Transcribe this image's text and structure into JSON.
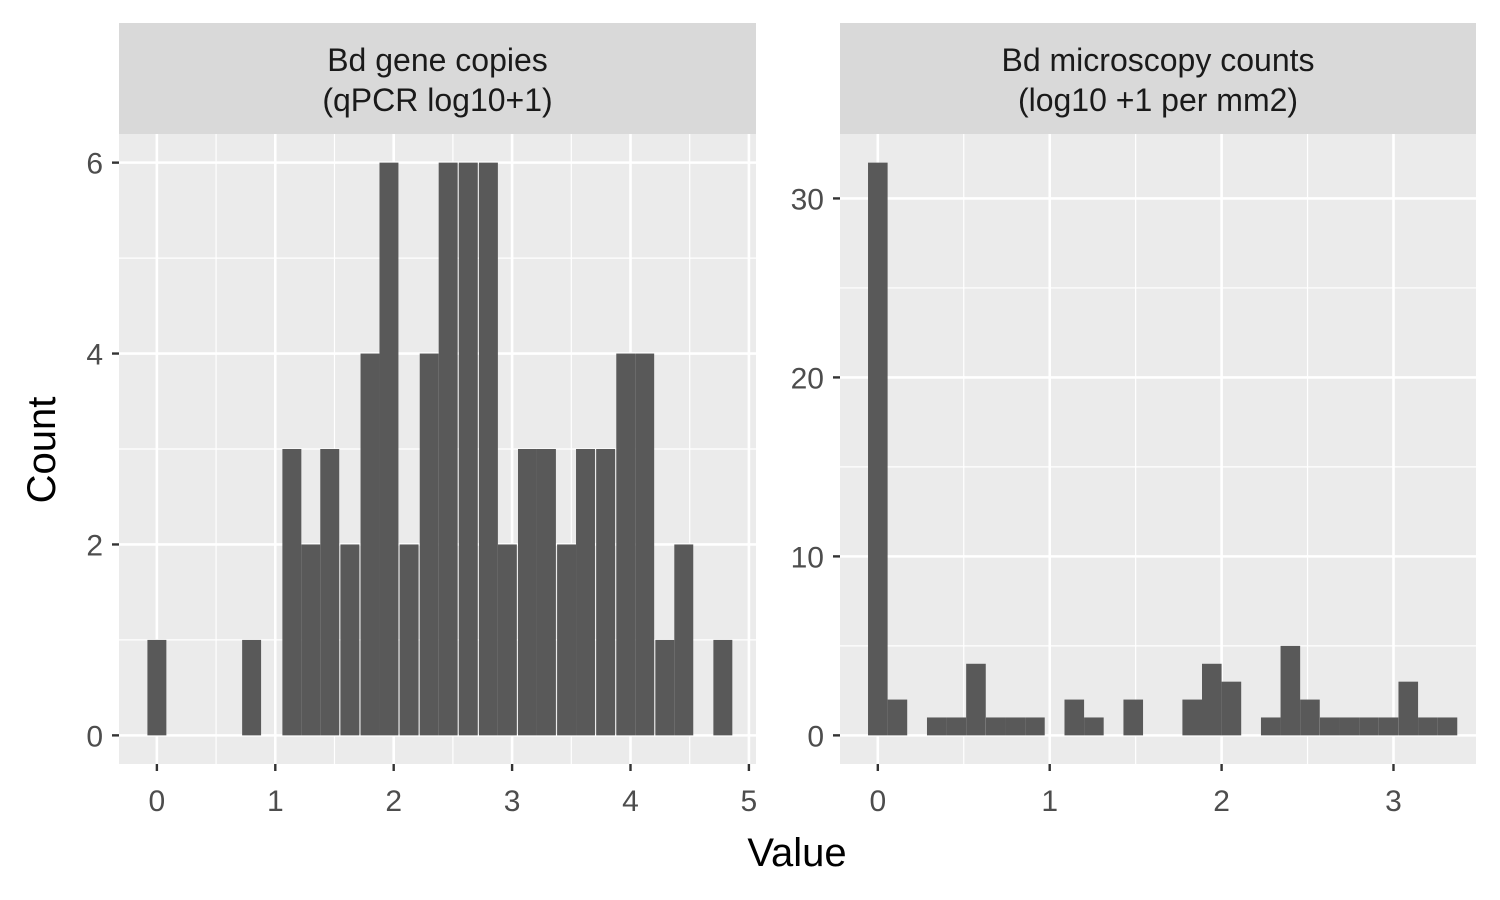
{
  "chart_data": [
    {
      "type": "bar",
      "facet_title_lines": [
        "Bd gene copies",
        "(qPCR log10+1)"
      ],
      "x_ticks": [
        0,
        1,
        2,
        3,
        4,
        5
      ],
      "y_ticks": [
        0,
        2,
        4,
        6
      ],
      "xlim": [
        -0.32,
        5.06
      ],
      "ylim": [
        -0.3,
        6.3
      ],
      "bin_width": 0.16,
      "bins": [
        {
          "center": 0.0,
          "count": 1
        },
        {
          "center": 0.8,
          "count": 1
        },
        {
          "center": 1.14,
          "count": 3
        },
        {
          "center": 1.3,
          "count": 2
        },
        {
          "center": 1.46,
          "count": 3
        },
        {
          "center": 1.63,
          "count": 2
        },
        {
          "center": 1.8,
          "count": 4
        },
        {
          "center": 1.96,
          "count": 6
        },
        {
          "center": 2.13,
          "count": 2
        },
        {
          "center": 2.3,
          "count": 4
        },
        {
          "center": 2.46,
          "count": 6
        },
        {
          "center": 2.63,
          "count": 6
        },
        {
          "center": 2.8,
          "count": 6
        },
        {
          "center": 2.96,
          "count": 2
        },
        {
          "center": 3.13,
          "count": 3
        },
        {
          "center": 3.29,
          "count": 3
        },
        {
          "center": 3.46,
          "count": 2
        },
        {
          "center": 3.62,
          "count": 3
        },
        {
          "center": 3.79,
          "count": 3
        },
        {
          "center": 3.96,
          "count": 4
        },
        {
          "center": 4.12,
          "count": 4
        },
        {
          "center": 4.29,
          "count": 1
        },
        {
          "center": 4.45,
          "count": 2
        },
        {
          "center": 4.78,
          "count": 1
        }
      ]
    },
    {
      "type": "bar",
      "facet_title_lines": [
        "Bd microscopy counts",
        "(log10 +1 per mm2)"
      ],
      "x_ticks": [
        0,
        1,
        2,
        3
      ],
      "y_ticks": [
        0,
        10,
        20,
        30
      ],
      "xlim": [
        -0.22,
        3.48
      ],
      "ylim": [
        -1.6,
        33.6
      ],
      "bin_width": 0.114,
      "bins": [
        {
          "center": 0.0,
          "count": 32
        },
        {
          "center": 0.114,
          "count": 2
        },
        {
          "center": 0.343,
          "count": 1
        },
        {
          "center": 0.457,
          "count": 1
        },
        {
          "center": 0.571,
          "count": 4
        },
        {
          "center": 0.686,
          "count": 1
        },
        {
          "center": 0.8,
          "count": 1
        },
        {
          "center": 0.914,
          "count": 1
        },
        {
          "center": 1.143,
          "count": 2
        },
        {
          "center": 1.257,
          "count": 1
        },
        {
          "center": 1.486,
          "count": 2
        },
        {
          "center": 1.829,
          "count": 2
        },
        {
          "center": 1.943,
          "count": 4
        },
        {
          "center": 2.057,
          "count": 3
        },
        {
          "center": 2.286,
          "count": 1
        },
        {
          "center": 2.4,
          "count": 5
        },
        {
          "center": 2.514,
          "count": 2
        },
        {
          "center": 2.629,
          "count": 1
        },
        {
          "center": 2.743,
          "count": 1
        },
        {
          "center": 2.857,
          "count": 1
        },
        {
          "center": 2.971,
          "count": 1
        },
        {
          "center": 3.086,
          "count": 3
        },
        {
          "center": 3.2,
          "count": 1
        },
        {
          "center": 3.314,
          "count": 1
        }
      ]
    }
  ],
  "axes": {
    "x_title": "Value",
    "y_title": "Count"
  },
  "colors": {
    "panel_background": "#ebebeb",
    "strip_background": "#d9d9d9",
    "bar_fill": "#595959",
    "gridline": "#ffffff",
    "tick_label": "#4d4d4d",
    "axis_title": "#000000"
  }
}
